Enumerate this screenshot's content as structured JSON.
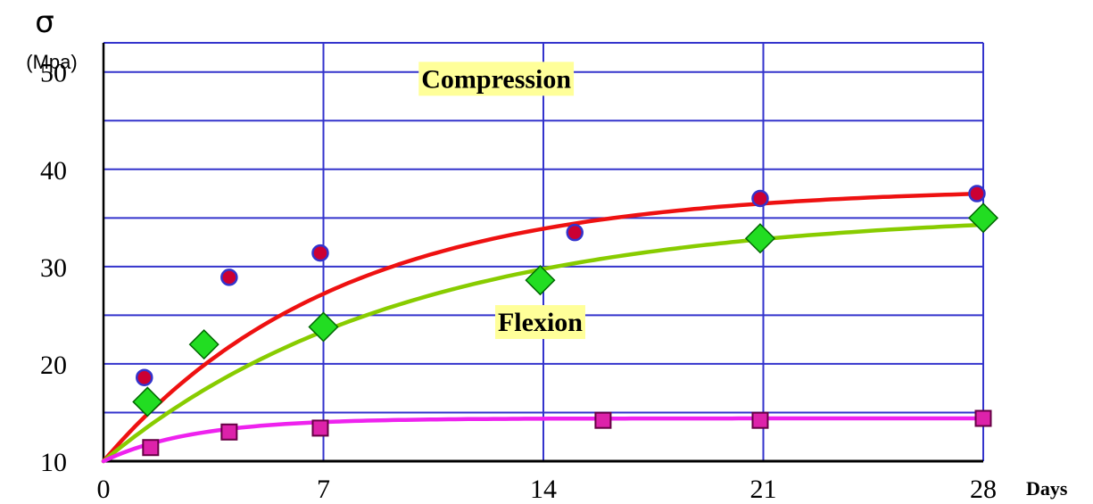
{
  "chart_data": {
    "type": "scatter",
    "title": "",
    "ylabel_symbol": "σ",
    "ylabel_unit": "(Mpa)",
    "xlabel": "Days",
    "xlim": [
      0,
      28
    ],
    "ylim": [
      10,
      53
    ],
    "x_ticks": [
      0,
      7,
      14,
      21,
      28
    ],
    "x_tick_labels": [
      "0",
      "7",
      "14",
      "21",
      "28"
    ],
    "y_ticks": [
      10,
      20,
      30,
      40,
      50
    ],
    "y_tick_labels": [
      "10",
      "20",
      "30",
      "40",
      "50"
    ],
    "y_grid_lines": [
      10,
      15,
      20,
      25,
      30,
      35,
      40,
      45,
      50,
      53
    ],
    "grid": true,
    "grid_color": "#3333cc",
    "annotations": [
      {
        "text": "Compression",
        "x": 12.5,
        "y": 49.3,
        "background": "#ffff99"
      },
      {
        "text": "Flexion",
        "x": 13.9,
        "y": 24.3,
        "background": "#ffff99"
      }
    ],
    "series": [
      {
        "marker": "circle",
        "marker_fill": "#cc0033",
        "marker_edge": "#3333cc",
        "fit_color": "#ee1111",
        "points": [
          [
            1.3,
            18.6
          ],
          [
            4.0,
            28.9
          ],
          [
            6.9,
            31.4
          ],
          [
            15.0,
            33.5
          ],
          [
            20.9,
            37.0
          ],
          [
            27.8,
            37.5
          ]
        ],
        "fit_start": [
          0,
          10
        ],
        "fit_end": [
          28,
          37.5
        ],
        "fit_k": 0.135
      },
      {
        "marker": "diamond",
        "marker_fill": "#22dd22",
        "marker_edge": "#006600",
        "fit_color": "#88cc00",
        "points": [
          [
            1.4,
            16.1
          ],
          [
            3.2,
            22.0
          ],
          [
            7.0,
            23.8
          ],
          [
            13.9,
            28.6
          ],
          [
            20.9,
            32.9
          ],
          [
            28.0,
            35.0
          ]
        ],
        "fit_start": [
          0,
          10
        ],
        "fit_end": [
          28,
          34.3
        ],
        "fit_k": 0.105
      },
      {
        "marker": "square",
        "marker_fill": "#dd22aa",
        "marker_edge": "#660044",
        "fit_color": "#ee22ee",
        "points": [
          [
            1.5,
            11.4
          ],
          [
            4.0,
            13.0
          ],
          [
            6.9,
            13.4
          ],
          [
            15.9,
            14.2
          ],
          [
            20.9,
            14.2
          ],
          [
            28.0,
            14.4
          ]
        ],
        "fit_start": [
          0,
          10
        ],
        "fit_end": [
          28,
          14.4
        ],
        "fit_k": 0.35
      }
    ]
  }
}
